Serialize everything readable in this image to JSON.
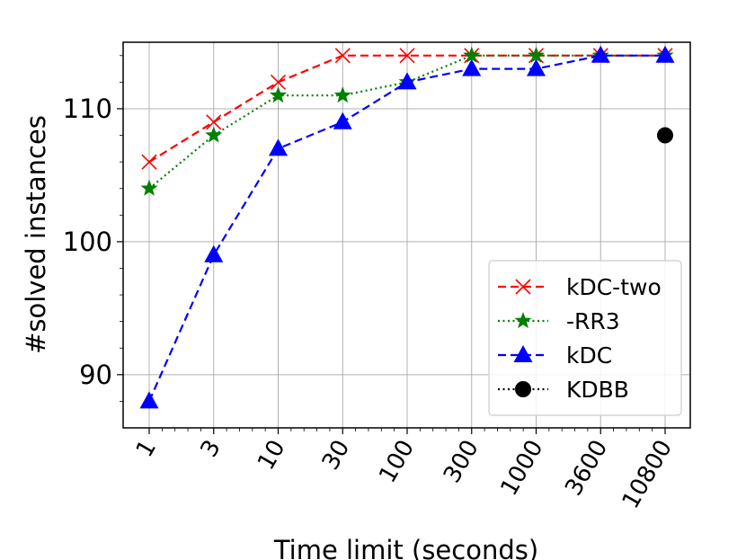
{
  "chart_data": {
    "type": "line",
    "title": "",
    "xlabel": "Time limit (seconds)",
    "ylabel": "#solved instances",
    "categories": [
      "1",
      "3",
      "10",
      "30",
      "100",
      "300",
      "1000",
      "3600",
      "10800"
    ],
    "ylim": [
      86,
      115
    ],
    "yticks": [
      90,
      100,
      110
    ],
    "grid": true,
    "legend_position": "lower-right",
    "series": [
      {
        "name": "kDC-two",
        "color": "#ff0000",
        "marker": "x",
        "linestyle": "dashed",
        "values": [
          106,
          109,
          112,
          114,
          114,
          114,
          114,
          114,
          114
        ]
      },
      {
        "name": "-RR3",
        "color": "#008000",
        "marker": "star",
        "linestyle": "dotted",
        "values": [
          104,
          108,
          111,
          111,
          112,
          114,
          114,
          114,
          114
        ]
      },
      {
        "name": "kDC",
        "color": "#0000ff",
        "marker": "triangle",
        "linestyle": "dashed",
        "values": [
          88,
          99,
          107,
          109,
          112,
          113,
          113,
          114,
          114
        ]
      },
      {
        "name": "KDBB",
        "color": "#000000",
        "marker": "circle",
        "linestyle": "dotted",
        "values": [
          null,
          null,
          null,
          null,
          null,
          null,
          null,
          null,
          108
        ]
      }
    ]
  }
}
